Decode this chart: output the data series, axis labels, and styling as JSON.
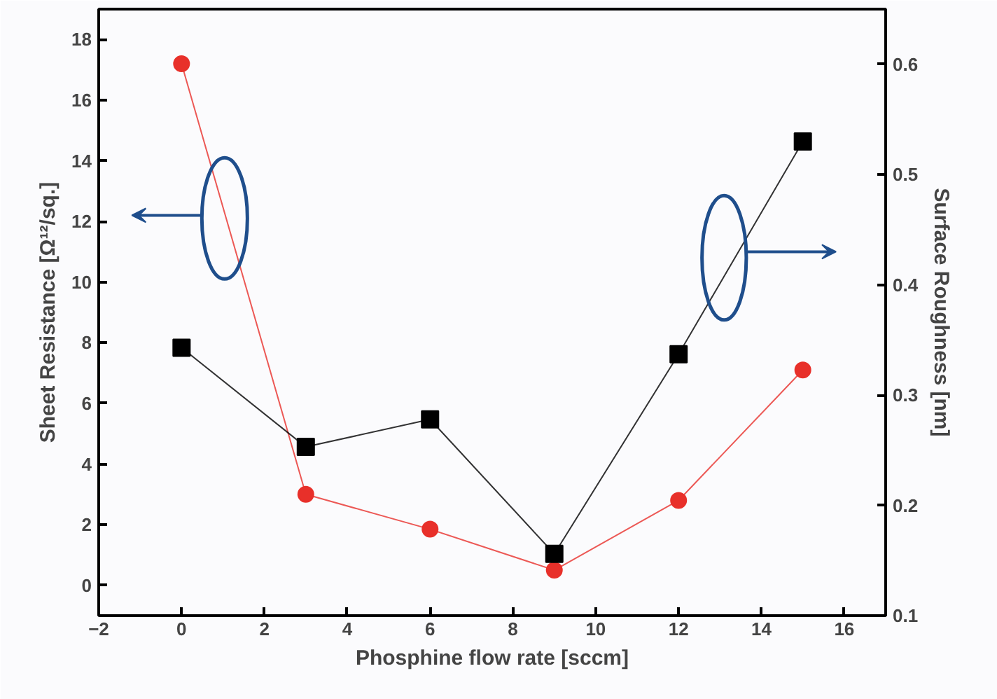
{
  "chart_data": {
    "type": "line",
    "xlabel": "Phosphine flow rate [sccm]",
    "ylabel": "Sheet Resistance [Ω¹²/sq.]",
    "y2label": "Surface Roughness [nm]",
    "x": [
      0,
      3,
      6,
      9,
      12,
      15
    ],
    "xlim": [
      -2,
      17
    ],
    "xticks": [
      -2,
      0,
      2,
      4,
      6,
      8,
      10,
      12,
      14,
      16
    ],
    "ylim": [
      -1,
      19
    ],
    "yticks": [
      0,
      2,
      4,
      6,
      8,
      10,
      12,
      14,
      16,
      18
    ],
    "y2lim": [
      0.1,
      0.65
    ],
    "y2ticks": [
      0.1,
      0.2,
      0.3,
      0.4,
      0.5,
      0.6
    ],
    "grid": false,
    "series": [
      {
        "color": "#e8302a",
        "marker": "circle",
        "values": [
          17.2,
          3.0,
          1.85,
          0.5,
          2.8,
          7.1
        ]
      },
      {
        "color": "#000000",
        "marker": "square",
        "axis": "y2",
        "values": [
          0.343,
          0.253,
          0.278,
          0.156,
          0.337,
          0.53
        ]
      }
    ]
  }
}
